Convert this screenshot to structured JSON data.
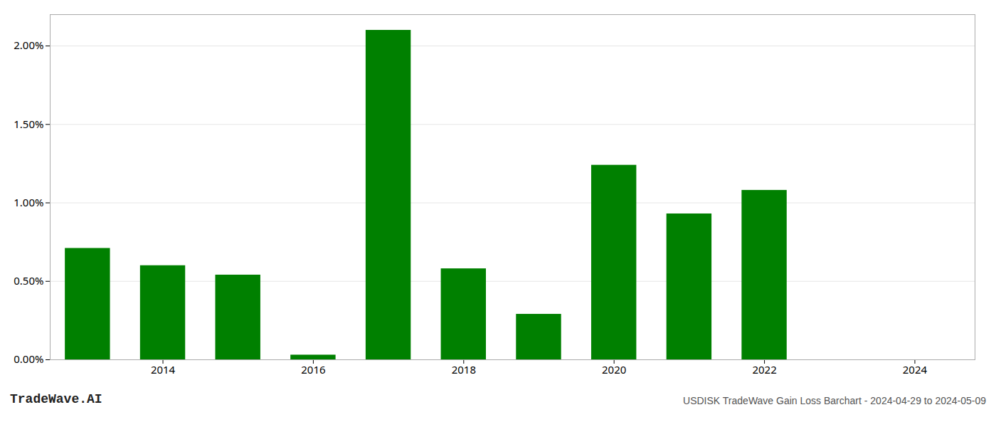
{
  "chart_data": {
    "type": "bar",
    "title": "USDISK TradeWave Gain Loss Barchart - 2024-04-29 to 2024-05-09",
    "annotations": [
      "TradeWave.AI"
    ],
    "x": [
      2013,
      2014,
      2015,
      2016,
      2017,
      2018,
      2019,
      2020,
      2021,
      2022,
      2023,
      2024
    ],
    "values": [
      0.0071,
      0.006,
      0.0054,
      0.0003,
      0.021,
      0.0058,
      0.0029,
      0.0124,
      0.0093,
      0.0108,
      0.0,
      0.0
    ],
    "color": "#008000",
    "xlim": [
      2012.5,
      2024.8
    ],
    "xticks": [
      2014,
      2016,
      2018,
      2020,
      2022,
      2024
    ],
    "ylim": [
      0.0,
      0.022
    ],
    "yticks": [
      {
        "value": 0.0,
        "label": "0.00%"
      },
      {
        "value": 0.005,
        "label": "0.50%"
      },
      {
        "value": 0.01,
        "label": "1.00%"
      },
      {
        "value": 0.015,
        "label": "1.50%"
      },
      {
        "value": 0.02,
        "label": "2.00%"
      }
    ],
    "grid": true
  }
}
